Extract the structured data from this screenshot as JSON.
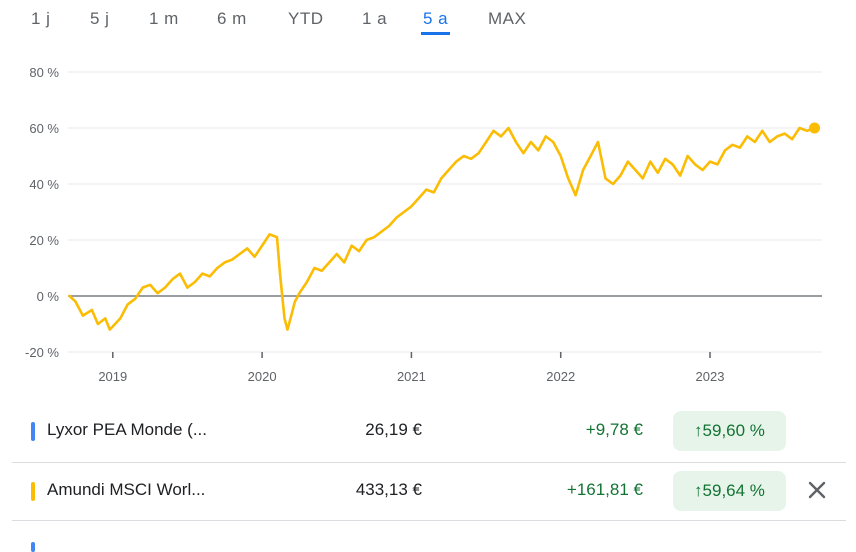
{
  "ranges": [
    "1 j",
    "5 j",
    "1 m",
    "6 m",
    "YTD",
    "1 a",
    "5 a",
    "MAX"
  ],
  "active_range": "5 a",
  "colors": {
    "series": "#fbbc04",
    "accent": "#1a73e8",
    "positive": "#137333",
    "positive_bg": "#e6f4ea",
    "blue_marker": "#4285f4"
  },
  "chart_data": {
    "type": "line",
    "y_ticks": [
      "80 %",
      "60 %",
      "40 %",
      "20 %",
      "0 %",
      "-20 %"
    ],
    "y_tick_values": [
      80,
      60,
      40,
      20,
      0,
      -20
    ],
    "ylim": [
      -20,
      80
    ],
    "x_ticks": [
      "2019",
      "2020",
      "2021",
      "2022",
      "2023"
    ],
    "x_tick_values": [
      2019.0,
      2020.0,
      2021.0,
      2022.0,
      2023.0
    ],
    "xlim": [
      2018.7,
      2023.75
    ],
    "grid": true,
    "series": [
      {
        "color": "#fbbc04",
        "x": [
          2018.71,
          2018.75,
          2018.8,
          2018.86,
          2018.9,
          2018.95,
          2018.98,
          2019.05,
          2019.1,
          2019.15,
          2019.2,
          2019.25,
          2019.3,
          2019.35,
          2019.4,
          2019.45,
          2019.5,
          2019.55,
          2019.6,
          2019.65,
          2019.7,
          2019.75,
          2019.8,
          2019.85,
          2019.9,
          2019.95,
          2020.0,
          2020.05,
          2020.1,
          2020.12,
          2020.15,
          2020.17,
          2020.2,
          2020.22,
          2020.25,
          2020.3,
          2020.35,
          2020.4,
          2020.45,
          2020.5,
          2020.55,
          2020.6,
          2020.65,
          2020.7,
          2020.75,
          2020.8,
          2020.85,
          2020.9,
          2020.95,
          2021.0,
          2021.05,
          2021.1,
          2021.15,
          2021.2,
          2021.25,
          2021.3,
          2021.35,
          2021.4,
          2021.45,
          2021.5,
          2021.55,
          2021.6,
          2021.65,
          2021.7,
          2021.75,
          2021.8,
          2021.85,
          2021.9,
          2021.95,
          2022.0,
          2022.05,
          2022.1,
          2022.15,
          2022.2,
          2022.25,
          2022.3,
          2022.35,
          2022.4,
          2022.45,
          2022.5,
          2022.55,
          2022.6,
          2022.65,
          2022.7,
          2022.75,
          2022.8,
          2022.85,
          2022.9,
          2022.95,
          2023.0,
          2023.05,
          2023.1,
          2023.15,
          2023.2,
          2023.25,
          2023.3,
          2023.35,
          2023.4,
          2023.45,
          2023.5,
          2023.55,
          2023.6,
          2023.65,
          2023.7
        ],
        "y": [
          0,
          -2,
          -7,
          -5,
          -10,
          -8,
          -12,
          -8,
          -3,
          -1,
          3,
          4,
          1,
          3,
          6,
          8,
          3,
          5,
          8,
          7,
          10,
          12,
          13,
          15,
          17,
          14,
          18,
          22,
          21,
          8,
          -8,
          -12,
          -6,
          -2,
          1,
          5,
          10,
          9,
          12,
          15,
          12,
          18,
          16,
          20,
          21,
          23,
          25,
          28,
          30,
          32,
          35,
          38,
          37,
          42,
          45,
          48,
          50,
          49,
          51,
          55,
          59,
          57,
          60,
          55,
          51,
          55,
          52,
          57,
          55,
          50,
          42,
          36,
          45,
          50,
          55,
          42,
          40,
          43,
          48,
          45,
          42,
          48,
          44,
          49,
          47,
          43,
          50,
          47,
          45,
          48,
          47,
          52,
          54,
          53,
          57,
          55,
          59,
          55,
          57,
          58,
          56,
          60,
          59,
          60
        ]
      }
    ]
  },
  "rows": [
    {
      "marker_color": "#4285f4",
      "name": "Lyxor PEA Monde (...",
      "price": "26,19 €",
      "change": "+9,78 €",
      "pct": "59,60 %",
      "pct_arrow": "arrow-up-icon",
      "removable": false
    },
    {
      "marker_color": "#fbbc04",
      "name": "Amundi MSCI Worl...",
      "price": "433,13 €",
      "change": "+161,81 €",
      "pct": "59,64 %",
      "pct_arrow": "arrow-up-icon",
      "removable": true
    }
  ]
}
